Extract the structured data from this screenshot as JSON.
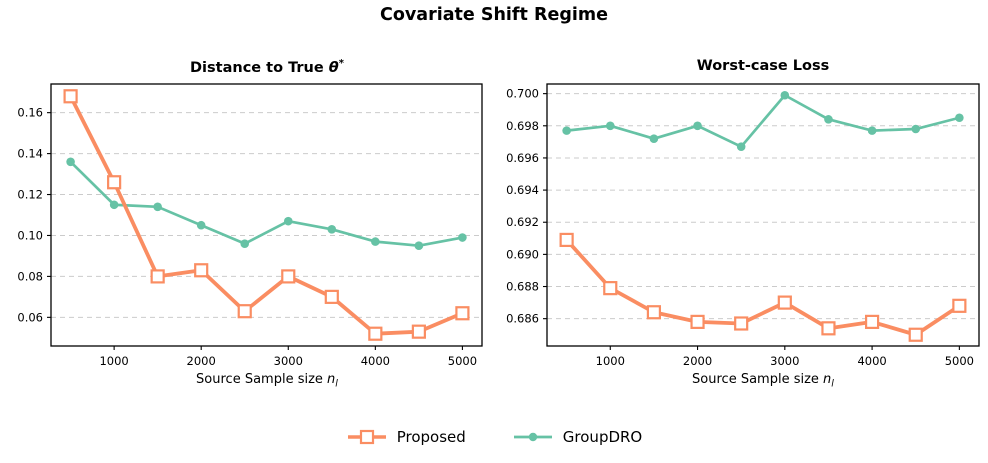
{
  "figure_title": "Covariate Shift Regime",
  "colors": {
    "proposed": "#FA8D62",
    "groupdro": "#66C2A5",
    "grid": "#CBCBCB",
    "axis": "#000000",
    "marker_fill": "#FFFFFF"
  },
  "xlabel": {
    "text": "Source Sample size ",
    "symbol": "n",
    "sub": "l"
  },
  "legend": {
    "items": [
      {
        "label": "Proposed",
        "color_key": "proposed",
        "marker": "open-square"
      },
      {
        "label": "GroupDRO",
        "color_key": "groupdro",
        "marker": "filled-circle"
      }
    ]
  },
  "chart_data": [
    {
      "type": "line",
      "title": {
        "text": "Distance to True ",
        "symbol": "θ",
        "sup": "*"
      },
      "xlabel": "Source Sample size n_l",
      "x": [
        500,
        1000,
        1500,
        2000,
        2500,
        3000,
        3500,
        4000,
        4500,
        5000
      ],
      "xticks": [
        1000,
        2000,
        3000,
        4000,
        5000
      ],
      "yticks": [
        0.06,
        0.08,
        0.1,
        0.12,
        0.14,
        0.16
      ],
      "ytick_labels": [
        "0.06",
        "0.08",
        "0.10",
        "0.12",
        "0.14",
        "0.16"
      ],
      "xlim": [
        275,
        5225
      ],
      "ylim": [
        0.046,
        0.174
      ],
      "grid": "horizontal-dashed",
      "series": [
        {
          "name": "Proposed",
          "color_key": "proposed",
          "marker": "open-square",
          "line_width": 3.8,
          "values": [
            0.168,
            0.126,
            0.08,
            0.083,
            0.063,
            0.08,
            0.07,
            0.052,
            0.053,
            0.062
          ]
        },
        {
          "name": "GroupDRO",
          "color_key": "groupdro",
          "marker": "filled-circle",
          "line_width": 2.7,
          "values": [
            0.136,
            0.115,
            0.114,
            0.105,
            0.096,
            0.107,
            0.103,
            0.097,
            0.095,
            0.099
          ]
        }
      ]
    },
    {
      "type": "line",
      "title": {
        "text": "Worst-case Loss",
        "symbol": "",
        "sup": ""
      },
      "xlabel": "Source Sample size n_l",
      "x": [
        500,
        1000,
        1500,
        2000,
        2500,
        3000,
        3500,
        4000,
        4500,
        5000
      ],
      "xticks": [
        1000,
        2000,
        3000,
        4000,
        5000
      ],
      "yticks": [
        0.686,
        0.688,
        0.69,
        0.692,
        0.694,
        0.696,
        0.698,
        0.7
      ],
      "ytick_labels": [
        "0.686",
        "0.688",
        "0.690",
        "0.692",
        "0.694",
        "0.696",
        "0.698",
        "0.700"
      ],
      "xlim": [
        275,
        5225
      ],
      "ylim": [
        0.6843,
        0.7006
      ],
      "grid": "horizontal-dashed",
      "series": [
        {
          "name": "Proposed",
          "color_key": "proposed",
          "marker": "open-square",
          "line_width": 3.8,
          "values": [
            0.6909,
            0.6879,
            0.6864,
            0.6858,
            0.6857,
            0.687,
            0.6854,
            0.6858,
            0.685,
            0.6868
          ]
        },
        {
          "name": "GroupDRO",
          "color_key": "groupdro",
          "marker": "filled-circle",
          "line_width": 2.7,
          "values": [
            0.6977,
            0.698,
            0.6972,
            0.698,
            0.6967,
            0.6999,
            0.6984,
            0.6977,
            0.6978,
            0.6985
          ]
        }
      ]
    }
  ]
}
